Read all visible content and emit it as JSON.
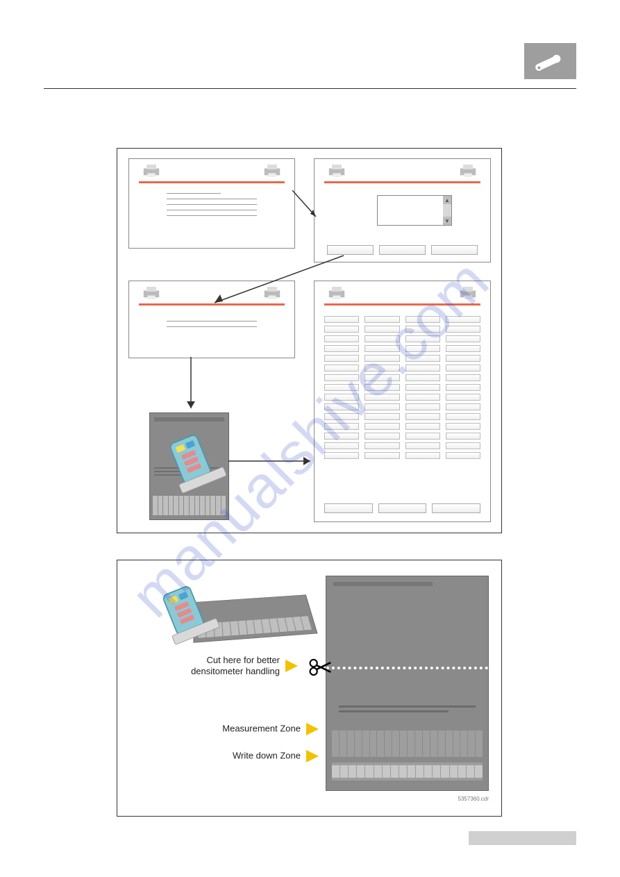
{
  "colors": {
    "header_icon_bg": "#9e9e9e",
    "accent_line": "#e8694a",
    "grey_panel": "#8a8a8a",
    "arrow_yellow": "#f2c200",
    "watermark": "rgba(60,80,200,0.22)",
    "footer_bar": "#d0d0d0"
  },
  "figure2": {
    "callout_cut": "Cut here for better\ndensitometer handling",
    "callout_measure": "Measurement Zone",
    "callout_write": "Write down Zone",
    "id_text": "5357360.cdr"
  },
  "watermark_text": "manualshive.com",
  "panelD": {
    "columns": 4,
    "rows_per_column": 15
  },
  "bars_small": 14,
  "bars_mzone": 20,
  "bars_wzone": 18
}
